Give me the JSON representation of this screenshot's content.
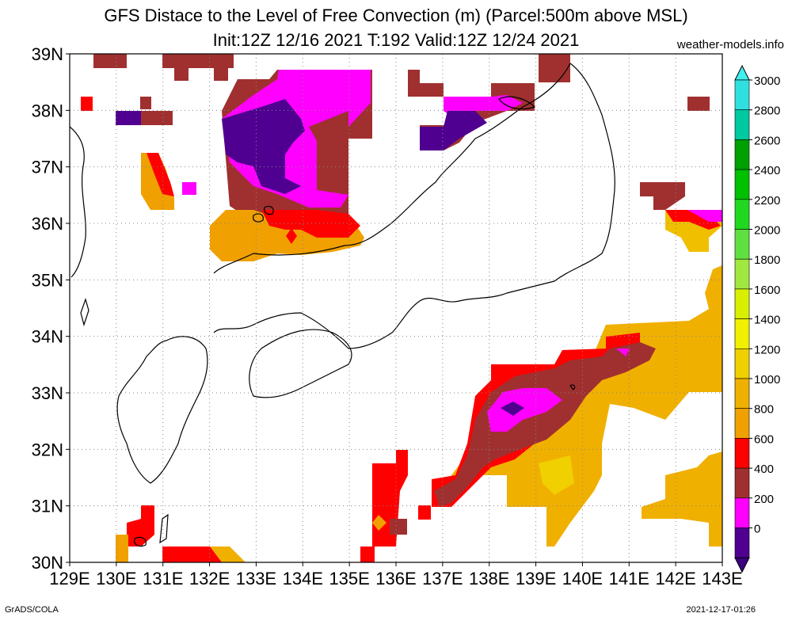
{
  "title": "GFS Distace to the Level of Free Convection (m) (Parcel:500m above MSL)",
  "subtitle": "Init:12Z 12/16 2021 T:192 Valid:12Z 12/24 2021",
  "source": "weather-models.info",
  "footer_left": "GrADS/COLA",
  "footer_right": "2021-12-17-01:26",
  "map": {
    "lon_labels": [
      "129E",
      "130E",
      "131E",
      "132E",
      "133E",
      "134E",
      "135E",
      "136E",
      "137E",
      "138E",
      "139E",
      "140E",
      "141E",
      "142E",
      "143E"
    ],
    "lat_labels": [
      "39N",
      "38N",
      "37N",
      "36N",
      "35N",
      "34N",
      "33N",
      "32N",
      "31N",
      "30N"
    ],
    "lon_range": [
      129,
      143
    ],
    "lat_range": [
      30,
      39
    ],
    "grid": "dotted"
  },
  "colorbar": {
    "levels": [
      "3000",
      "2800",
      "2600",
      "2400",
      "2200",
      "2000",
      "1800",
      "1600",
      "1400",
      "1200",
      "1000",
      "800",
      "600",
      "400",
      "200",
      "0"
    ],
    "colors": [
      "#30e0e0",
      "#00c8a0",
      "#00a000",
      "#00c000",
      "#20d820",
      "#60e040",
      "#a0e840",
      "#d8f000",
      "#f0f000",
      "#f0d000",
      "#f0b000",
      "#f0a000",
      "#ff0000",
      "#a03030",
      "#ff00ff",
      "#500090"
    ],
    "top_color": "#40f0f0",
    "bottom_color": "#3c0080"
  },
  "colors": {
    "purple": "#500090",
    "magenta": "#ff00ff",
    "brown": "#a03030",
    "red": "#ff0000",
    "orange": "#f0a000",
    "yellow": "#f0d000"
  }
}
